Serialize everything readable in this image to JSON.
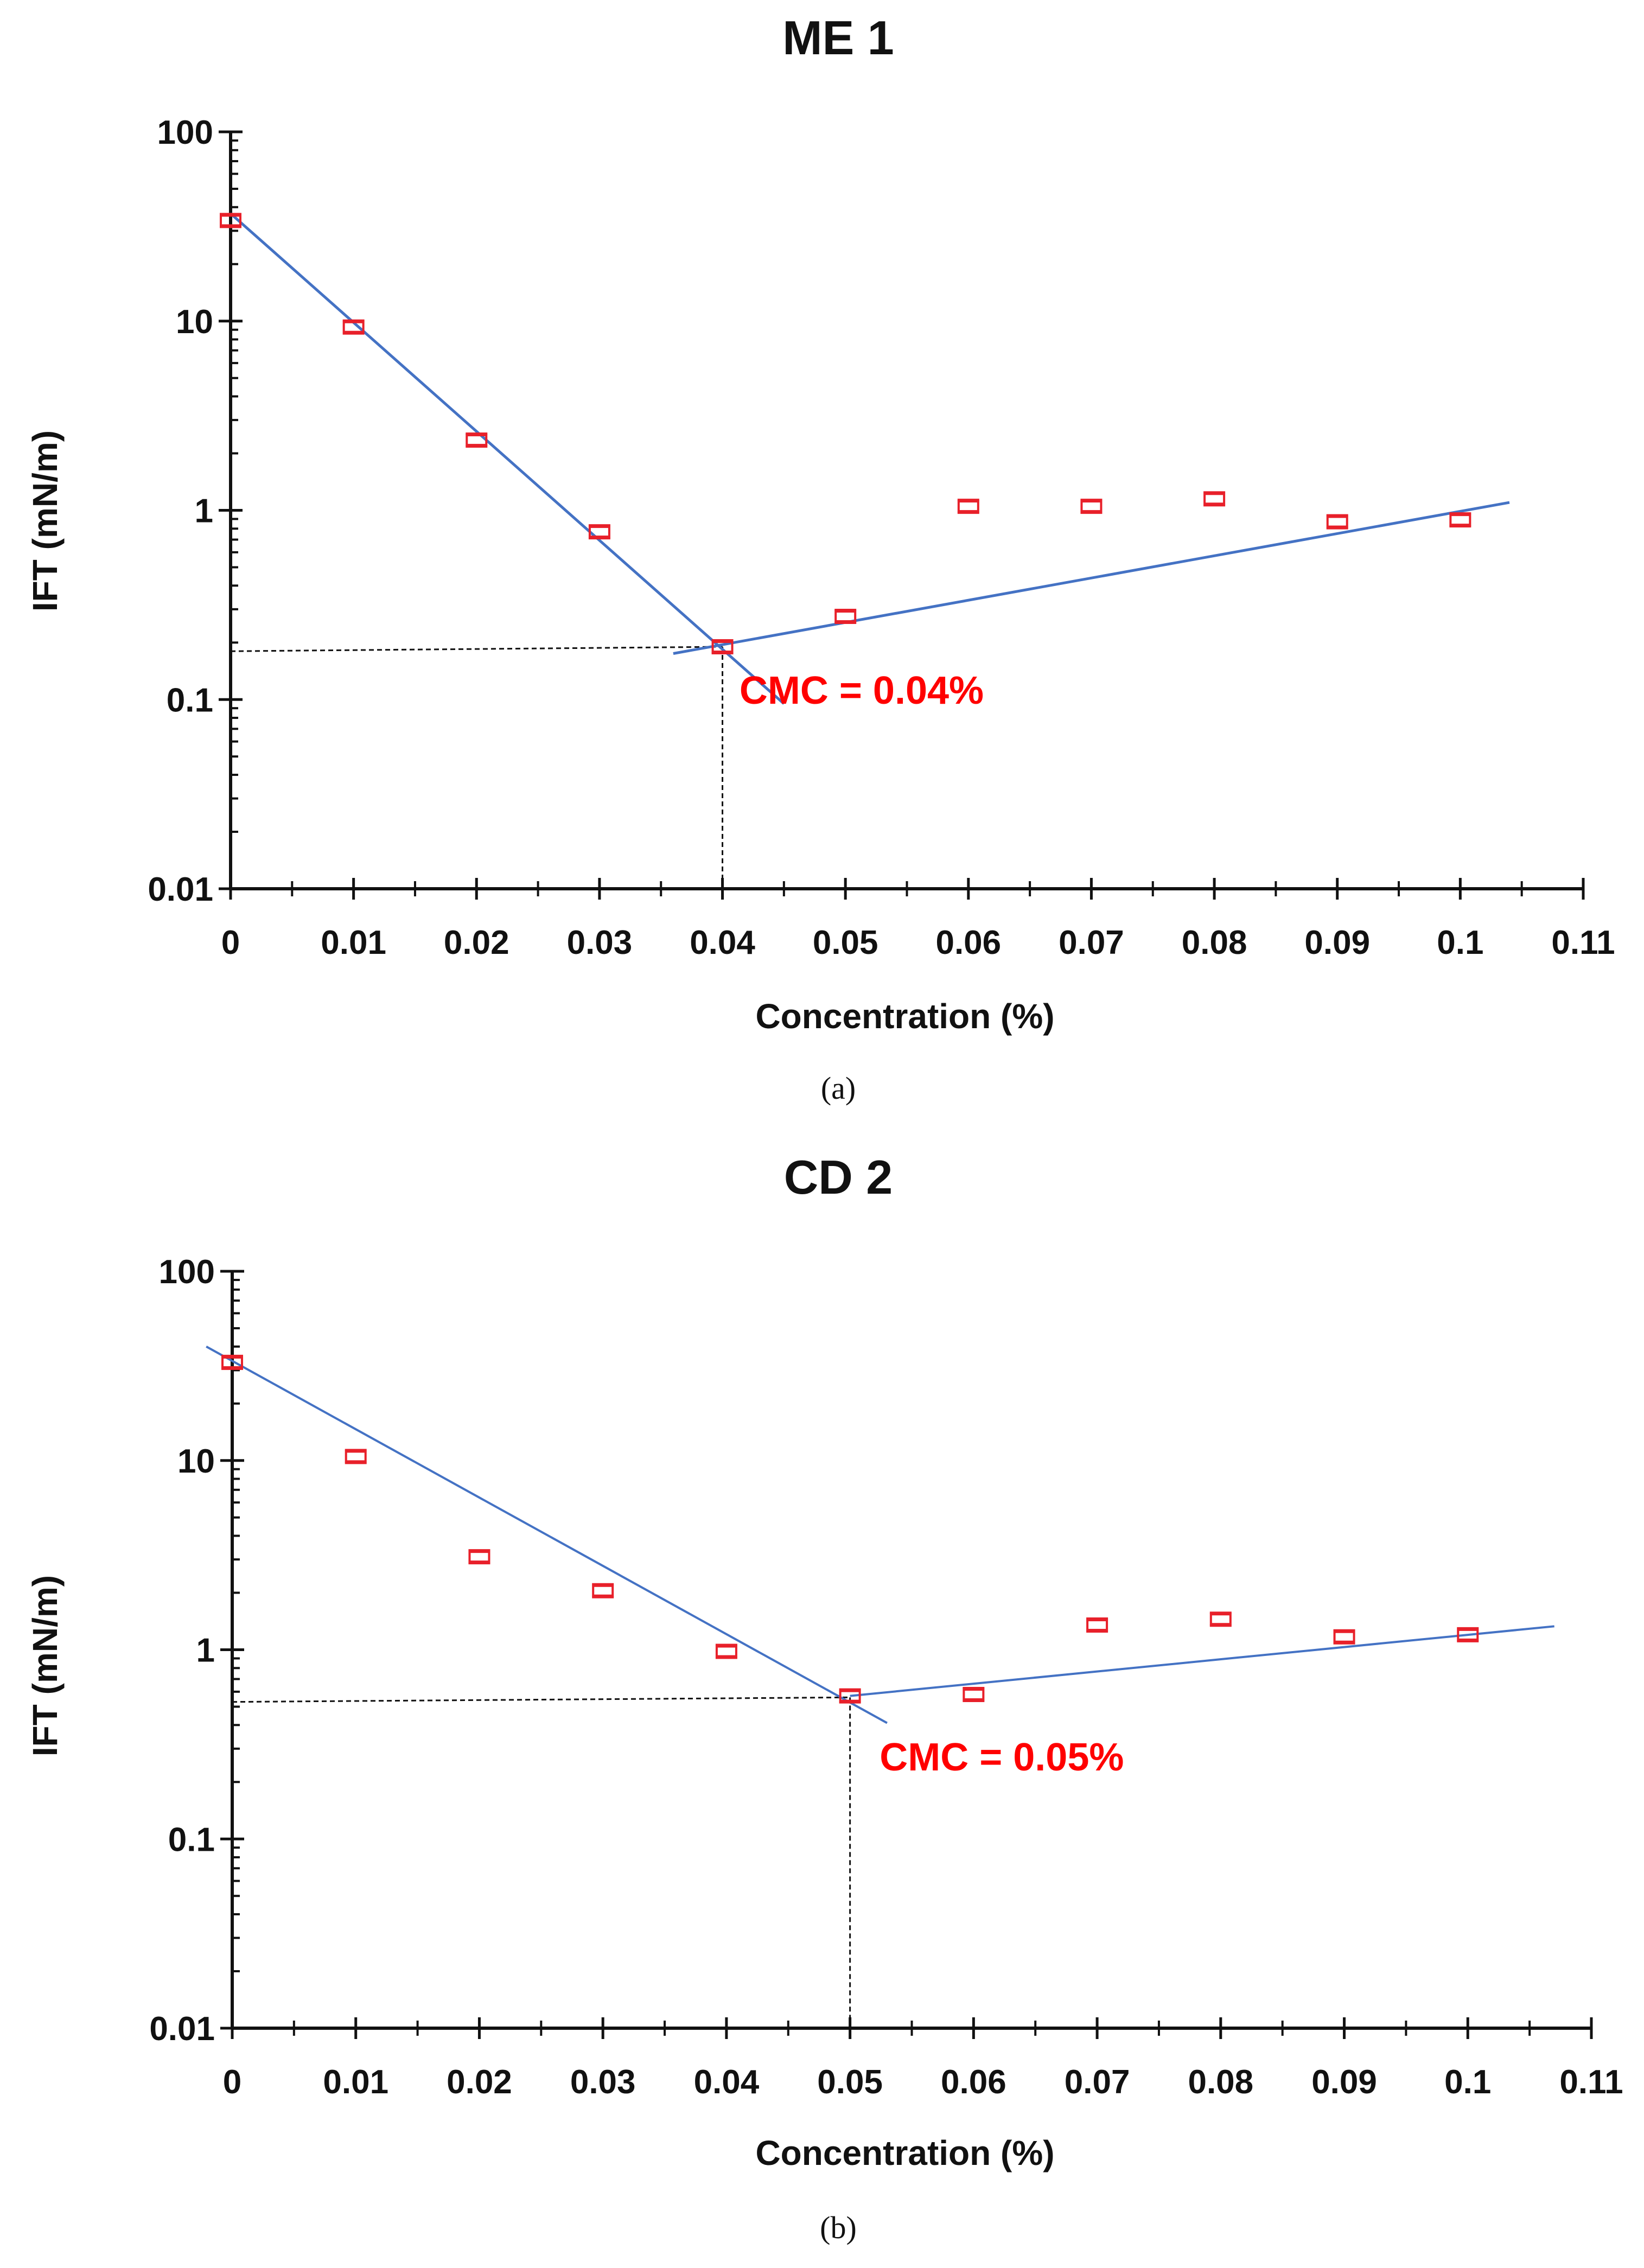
{
  "chart_data": [
    {
      "type": "scatter",
      "title": "ME 1",
      "caption": "(a)",
      "xlabel": "Concentration (%)",
      "ylabel": "IFT  (mN/m)",
      "xlim": [
        0,
        0.11
      ],
      "ylim": [
        0.01,
        100
      ],
      "yscale": "log",
      "x_ticks": [
        "0",
        "0.01",
        "0.02",
        "0.03",
        "0.04",
        "0.05",
        "0.06",
        "0.07",
        "0.08",
        "0.09",
        "0.1",
        "0.11"
      ],
      "y_ticks": [
        "0.01",
        "0.1",
        "1",
        "10",
        "100"
      ],
      "series": [
        {
          "name": "IFT",
          "color": "#e8202a",
          "x": [
            0,
            0.01,
            0.02,
            0.03,
            0.04,
            0.05,
            0.06,
            0.07,
            0.08,
            0.09,
            0.1
          ],
          "y": [
            34,
            9.3,
            2.35,
            0.77,
            0.19,
            0.275,
            1.05,
            1.05,
            1.15,
            0.87,
            0.89
          ]
        }
      ],
      "fit_lines": [
        {
          "name": "decline fit",
          "color": "#4472c4",
          "x": [
            0,
            0.045
          ],
          "y": [
            37,
            0.095
          ]
        },
        {
          "name": "plateau fit",
          "color": "#4472c4",
          "x": [
            0.036,
            0.104
          ],
          "y": [
            0.175,
            1.1
          ]
        }
      ],
      "guide_lines": {
        "x": 0.04,
        "y": 0.19,
        "y_at_axis": 0.18
      },
      "annotation": {
        "text": "CMC = 0.04%",
        "color": "#ff0000",
        "x": 0.0405,
        "y": 0.095
      }
    },
    {
      "type": "scatter",
      "title": "CD 2",
      "caption": "(b)",
      "xlabel": "Concentration (%)",
      "ylabel": "IFT  (mN/m)",
      "xlim": [
        0,
        0.11
      ],
      "ylim": [
        0.01,
        100
      ],
      "yscale": "log",
      "x_ticks": [
        "0",
        "0.01",
        "0.02",
        "0.03",
        "0.04",
        "0.05",
        "0.06",
        "0.07",
        "0.08",
        "0.09",
        "0.1",
        "0.11"
      ],
      "y_ticks": [
        "0.01",
        "0.1",
        "1",
        "10",
        "100"
      ],
      "series": [
        {
          "name": "IFT",
          "color": "#e8202a",
          "x": [
            0,
            0.01,
            0.02,
            0.03,
            0.04,
            0.05,
            0.06,
            0.07,
            0.08,
            0.09,
            0.1
          ],
          "y": [
            33,
            10.5,
            3.1,
            2.05,
            0.98,
            0.57,
            0.58,
            1.35,
            1.45,
            1.17,
            1.2
          ]
        }
      ],
      "fit_lines": [
        {
          "name": "decline fit",
          "color": "#4472c4",
          "x": [
            -0.0021,
            0.053
          ],
          "y": [
            40,
            0.41
          ]
        },
        {
          "name": "plateau fit",
          "color": "#4472c4",
          "x": [
            0.05,
            0.107
          ],
          "y": [
            0.57,
            1.33
          ]
        }
      ],
      "guide_lines": {
        "x": 0.05,
        "y": 0.56,
        "y_at_axis": 0.53
      },
      "annotation": {
        "text": "CMC = 0.05%",
        "color": "#ff0000",
        "x": 0.0513,
        "y": 0.23
      }
    }
  ]
}
